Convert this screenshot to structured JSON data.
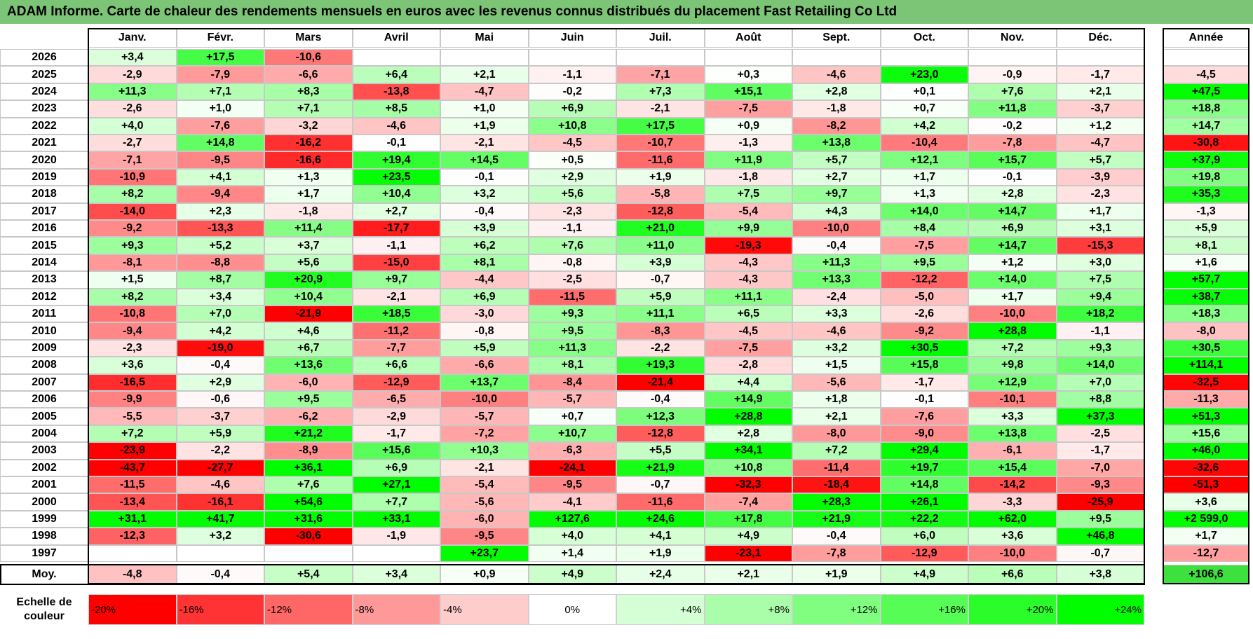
{
  "title": "ADAM Informe. Carte de chaleur des rendements mensuels en euros avec les revenus connus distribués du placement Fast Retailing Co Ltd",
  "chart_data": {
    "type": "heatmap",
    "title": "ADAM Informe. Carte de chaleur des rendements mensuels en euros avec les revenus connus distribués du placement Fast Retailing Co Ltd",
    "columns": [
      "Janv.",
      "Févr.",
      "Mars",
      "Avril",
      "Mai",
      "Juin",
      "Juil.",
      "Août",
      "Sept.",
      "Oct.",
      "Nov.",
      "Déc."
    ],
    "year_column": "Année",
    "rows": [
      {
        "year": "2026",
        "months": [
          "+3,4",
          "+17,5",
          "-10,6",
          "",
          "",
          "",
          "",
          "",
          "",
          "",
          "",
          ""
        ],
        "annual": ""
      },
      {
        "year": "2025",
        "months": [
          "-2,9",
          "-7,9",
          "-6,6",
          "+6,4",
          "+2,1",
          "-1,1",
          "-7,1",
          "+0,3",
          "-4,6",
          "+23,0",
          "-0,9",
          "-1,7"
        ],
        "annual": "-4,5"
      },
      {
        "year": "2024",
        "months": [
          "+11,3",
          "+7,1",
          "+8,3",
          "-13,8",
          "-4,7",
          "-0,2",
          "+7,3",
          "+15,1",
          "+2,8",
          "+0,1",
          "+7,6",
          "+2,1"
        ],
        "annual": "+47,5"
      },
      {
        "year": "2023",
        "months": [
          "-2,6",
          "+1,0",
          "+7,1",
          "+8,5",
          "+1,0",
          "+6,9",
          "-2,1",
          "-7,5",
          "-1,8",
          "+0,7",
          "+11,8",
          "-3,7"
        ],
        "annual": "+18,8"
      },
      {
        "year": "2022",
        "months": [
          "+4,0",
          "-7,6",
          "-3,2",
          "-4,6",
          "+1,9",
          "+10,8",
          "+17,5",
          "+0,9",
          "-8,2",
          "+4,2",
          "-0,2",
          "+1,2"
        ],
        "annual": "+14,7"
      },
      {
        "year": "2021",
        "months": [
          "-2,7",
          "+14,8",
          "-16,2",
          "-0,1",
          "-2,1",
          "-4,5",
          "-10,7",
          "-1,3",
          "+13,8",
          "-10,4",
          "-7,8",
          "-4,7"
        ],
        "annual": "-30,8"
      },
      {
        "year": "2020",
        "months": [
          "-7,1",
          "-9,5",
          "-16,6",
          "+19,4",
          "+14,5",
          "+0,5",
          "-11,6",
          "+11,9",
          "+5,7",
          "+12,1",
          "+15,7",
          "+5,7"
        ],
        "annual": "+37,9"
      },
      {
        "year": "2019",
        "months": [
          "-10,9",
          "+4,1",
          "+1,3",
          "+23,5",
          "-0,1",
          "+2,9",
          "+1,9",
          "-1,8",
          "+2,7",
          "+1,7",
          "-0,1",
          "-3,9"
        ],
        "annual": "+19,8"
      },
      {
        "year": "2018",
        "months": [
          "+8,2",
          "-9,4",
          "+1,7",
          "+10,4",
          "+3,2",
          "+5,6",
          "-5,8",
          "+7,5",
          "+9,7",
          "+1,3",
          "+2,8",
          "-2,3"
        ],
        "annual": "+35,3"
      },
      {
        "year": "2017",
        "months": [
          "-14,0",
          "+2,3",
          "-1,8",
          "+2,7",
          "-0,4",
          "-2,3",
          "-12,8",
          "-5,4",
          "+4,3",
          "+14,0",
          "+14,7",
          "+1,7"
        ],
        "annual": "-1,3"
      },
      {
        "year": "2016",
        "months": [
          "-9,2",
          "-13,3",
          "+11,4",
          "-17,7",
          "+3,9",
          "-1,1",
          "+21,0",
          "+9,9",
          "-10,0",
          "+8,4",
          "+6,9",
          "+3,1"
        ],
        "annual": "+5,9"
      },
      {
        "year": "2015",
        "months": [
          "+9,3",
          "+5,2",
          "+3,7",
          "-1,1",
          "+6,2",
          "+7,6",
          "+11,0",
          "-19,3",
          "-0,4",
          "-7,5",
          "+14,7",
          "-15,3"
        ],
        "annual": "+8,1"
      },
      {
        "year": "2014",
        "months": [
          "-8,1",
          "-8,8",
          "+5,6",
          "-15,0",
          "+8,1",
          "-0,8",
          "+3,9",
          "-4,3",
          "+11,3",
          "+9,5",
          "+1,2",
          "+3,0"
        ],
        "annual": "+1,6"
      },
      {
        "year": "2013",
        "months": [
          "+1,5",
          "+8,7",
          "+20,9",
          "+9,7",
          "-4,4",
          "-2,5",
          "-0,7",
          "-4,3",
          "+13,3",
          "-12,2",
          "+14,0",
          "+7,5"
        ],
        "annual": "+57,7"
      },
      {
        "year": "2012",
        "months": [
          "+8,2",
          "+3,4",
          "+10,4",
          "-2,1",
          "+6,9",
          "-11,5",
          "+5,9",
          "+11,1",
          "-2,4",
          "-5,0",
          "+1,7",
          "+9,4"
        ],
        "annual": "+38,7"
      },
      {
        "year": "2011",
        "months": [
          "-10,8",
          "+7,0",
          "-21,9",
          "+18,5",
          "-3,0",
          "+9,3",
          "+11,1",
          "+6,5",
          "+3,3",
          "-2,6",
          "-10,0",
          "+18,2"
        ],
        "annual": "+18,3"
      },
      {
        "year": "2010",
        "months": [
          "-9,4",
          "+4,2",
          "+4,6",
          "-11,2",
          "-0,8",
          "+9,5",
          "-8,3",
          "-4,5",
          "-4,6",
          "-9,2",
          "+28,8",
          "-1,1"
        ],
        "annual": "-8,0"
      },
      {
        "year": "2009",
        "months": [
          "-2,3",
          "-19,0",
          "+6,7",
          "-7,7",
          "+5,9",
          "+11,3",
          "-2,2",
          "-7,5",
          "+3,2",
          "+30,5",
          "+7,2",
          "+9,3"
        ],
        "annual": "+30,5"
      },
      {
        "year": "2008",
        "months": [
          "+3,6",
          "-0,4",
          "+13,6",
          "+6,6",
          "-6,6",
          "+8,1",
          "+19,3",
          "-2,8",
          "+1,5",
          "+15,8",
          "+9,8",
          "+14,0"
        ],
        "annual": "+114,1"
      },
      {
        "year": "2007",
        "months": [
          "-16,5",
          "+2,9",
          "-6,0",
          "-12,9",
          "+13,7",
          "-8,4",
          "-21,4",
          "+4,4",
          "-5,6",
          "-1,7",
          "+12,9",
          "+7,0"
        ],
        "annual": "-32,5"
      },
      {
        "year": "2006",
        "months": [
          "-9,9",
          "-0,6",
          "+9,5",
          "-6,5",
          "-10,0",
          "-5,7",
          "-0,4",
          "+14,9",
          "+1,8",
          "-0,1",
          "-10,1",
          "+8,8"
        ],
        "annual": "-11,3"
      },
      {
        "year": "2005",
        "months": [
          "-5,5",
          "-3,7",
          "-6,2",
          "-2,9",
          "-5,7",
          "+0,7",
          "+12,3",
          "+28,8",
          "+2,1",
          "-7,6",
          "+3,3",
          "+37,3"
        ],
        "annual": "+51,3"
      },
      {
        "year": "2004",
        "months": [
          "+7,2",
          "+5,9",
          "+21,2",
          "-1,7",
          "-7,2",
          "+10,7",
          "-12,8",
          "+2,8",
          "-8,0",
          "-9,0",
          "+13,8",
          "-2,5"
        ],
        "annual": "+15,6"
      },
      {
        "year": "2003",
        "months": [
          "-23,9",
          "-2,2",
          "-8,9",
          "+15,6",
          "+10,3",
          "-6,3",
          "+5,5",
          "+34,1",
          "+7,2",
          "+29,4",
          "-6,1",
          "-1,7"
        ],
        "annual": "+46,0"
      },
      {
        "year": "2002",
        "months": [
          "-43,7",
          "-27,7",
          "+36,1",
          "+6,9",
          "-2,1",
          "-24,1",
          "+21,9",
          "+10,8",
          "-11,4",
          "+19,7",
          "+15,4",
          "-7,0"
        ],
        "annual": "-32,6"
      },
      {
        "year": "2001",
        "months": [
          "-11,5",
          "-4,6",
          "+7,6",
          "+27,1",
          "-5,4",
          "-9,5",
          "-0,7",
          "-32,3",
          "-18,4",
          "+14,8",
          "-14,2",
          "-9,3"
        ],
        "annual": "-51,3"
      },
      {
        "year": "2000",
        "months": [
          "-13,4",
          "-16,1",
          "+54,6",
          "+7,7",
          "-5,6",
          "-4,1",
          "-11,6",
          "-7,4",
          "+28,3",
          "+26,1",
          "-3,3",
          "-25,9"
        ],
        "annual": "+3,6"
      },
      {
        "year": "1999",
        "months": [
          "+31,1",
          "+41,7",
          "+31,6",
          "+33,1",
          "-6,0",
          "+127,6",
          "+24,6",
          "+17,8",
          "+21,9",
          "+22,2",
          "+62,0",
          "+9,5"
        ],
        "annual": "+2 599,0"
      },
      {
        "year": "1998",
        "months": [
          "-12,3",
          "+3,2",
          "-30,6",
          "-1,9",
          "-9,5",
          "+4,0",
          "+4,1",
          "+4,9",
          "-0,4",
          "+6,0",
          "+3,6",
          "+46,8"
        ],
        "annual": "+1,7"
      },
      {
        "year": "1997",
        "months": [
          "",
          "",
          "",
          "",
          "+23,7",
          "+1,4",
          "+1,9",
          "-23,1",
          "-7,8",
          "-12,9",
          "-10,0",
          "-0,7"
        ],
        "annual": "-12,7"
      }
    ],
    "average": {
      "label": "Moy.",
      "months": [
        "-4,8",
        "-0,4",
        "+5,4",
        "+3,4",
        "+0,9",
        "+4,9",
        "+2,4",
        "+2,1",
        "+1,9",
        "+4,9",
        "+6,6",
        "+3,8"
      ],
      "annual": "+106,6"
    },
    "scale": {
      "label_line1": "Echelle de",
      "label_line2": "couleur",
      "items": [
        "-20%",
        "-16%",
        "-12%",
        "-8%",
        "-4%",
        "0%",
        "+4%",
        "+8%",
        "+12%",
        "+16%",
        "+20%",
        "+24%"
      ]
    },
    "colors": {
      "red": "#ff0000",
      "white": "#ffffff",
      "green": "#00e000",
      "title_bg": "#7cc576"
    }
  }
}
